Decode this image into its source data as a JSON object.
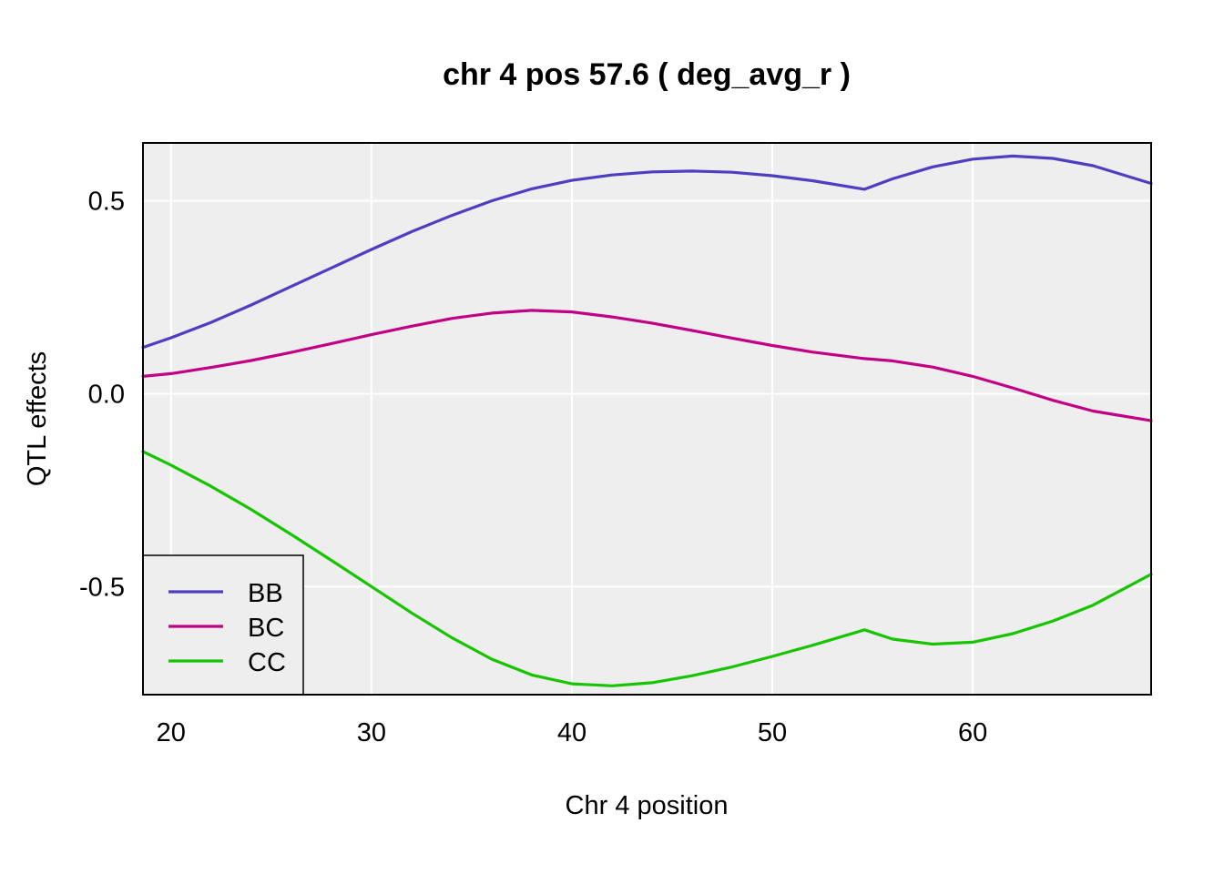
{
  "chart_data": {
    "type": "line",
    "title": "chr 4 pos 57.6 ( deg_avg_r )",
    "xlabel": "Chr 4 position",
    "ylabel": "QTL effects",
    "xlim": [
      18.6,
      68.9
    ],
    "ylim": [
      -0.78,
      0.65
    ],
    "xticks": [
      20,
      30,
      40,
      50,
      60
    ],
    "xtick_labels": [
      "20",
      "30",
      "40",
      "50",
      "60"
    ],
    "yticks": [
      0.5,
      0.0,
      -0.5
    ],
    "ytick_labels": [
      "0.5",
      "0.0",
      "-0.5"
    ],
    "grid": true,
    "legend_position": "bottom-left",
    "background": "#eeeeee",
    "series": [
      {
        "name": "BB",
        "color": "#4f3dc2",
        "x": [
          18.6,
          20,
          22,
          24,
          26,
          28,
          30,
          32,
          34,
          36,
          38,
          40,
          42,
          44,
          46,
          48,
          50,
          52,
          54.6,
          56,
          58,
          60,
          62,
          64,
          66,
          68.9
        ],
        "y": [
          0.12,
          0.145,
          0.185,
          0.23,
          0.278,
          0.326,
          0.374,
          0.42,
          0.462,
          0.5,
          0.531,
          0.553,
          0.567,
          0.575,
          0.577,
          0.574,
          0.565,
          0.552,
          0.53,
          0.557,
          0.588,
          0.608,
          0.616,
          0.61,
          0.591,
          0.545
        ]
      },
      {
        "name": "BC",
        "color": "#c20084",
        "x": [
          18.6,
          20,
          22,
          24,
          26,
          28,
          30,
          32,
          34,
          36,
          38,
          40,
          42,
          44,
          46,
          48,
          50,
          52,
          54.6,
          56,
          58,
          60,
          62,
          64,
          66,
          68.9
        ],
        "y": [
          0.045,
          0.052,
          0.068,
          0.086,
          0.107,
          0.13,
          0.153,
          0.175,
          0.195,
          0.209,
          0.216,
          0.212,
          0.199,
          0.183,
          0.164,
          0.144,
          0.125,
          0.108,
          0.091,
          0.085,
          0.069,
          0.045,
          0.015,
          -0.017,
          -0.045,
          -0.07
        ]
      },
      {
        "name": "CC",
        "color": "#17c400",
        "x": [
          18.6,
          20,
          22,
          24,
          26,
          28,
          30,
          32,
          34,
          36,
          38,
          40,
          42,
          44,
          46,
          48,
          50,
          52,
          54.6,
          56,
          58,
          60,
          62,
          64,
          66,
          68.9
        ],
        "y": [
          -0.15,
          -0.185,
          -0.24,
          -0.3,
          -0.365,
          -0.432,
          -0.5,
          -0.568,
          -0.632,
          -0.688,
          -0.729,
          -0.752,
          -0.757,
          -0.749,
          -0.731,
          -0.708,
          -0.681,
          -0.652,
          -0.612,
          -0.636,
          -0.649,
          -0.644,
          -0.622,
          -0.589,
          -0.548,
          -0.468
        ]
      }
    ]
  }
}
